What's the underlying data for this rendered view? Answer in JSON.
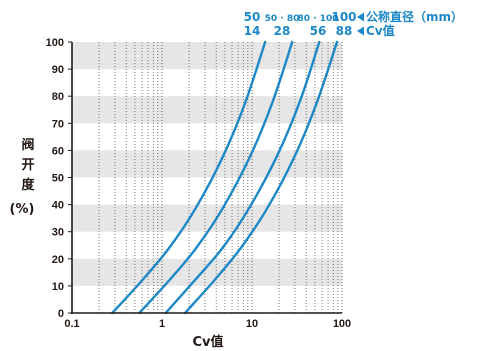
{
  "chart_data": {
    "type": "line",
    "title": "",
    "xlabel": "Cv值",
    "ylabel": [
      "阀",
      "开",
      "度",
      "(%)"
    ],
    "x_scale": "log",
    "xlim": [
      0.1,
      100
    ],
    "ylim": [
      0,
      100
    ],
    "x_ticks": [
      "0.1",
      "1",
      "10",
      "100"
    ],
    "y_ticks": [
      "0",
      "10",
      "20",
      "30",
      "40",
      "50",
      "60",
      "70",
      "80",
      "90",
      "100"
    ],
    "grid": true,
    "header": {
      "row1_label": "公称直径（mm）",
      "row2_label": "Cv值",
      "row1_values": [
        "50",
        "50 · 80",
        "80 · 100",
        "100"
      ],
      "row2_values": [
        "14",
        "28",
        "56",
        "88"
      ]
    },
    "series": [
      {
        "x": [
          0.28,
          0.6,
          1.2,
          2.4,
          4.8,
          8.5,
          14
        ],
        "y": [
          0,
          12,
          24,
          39,
          58,
          78,
          100
        ]
      },
      {
        "x": [
          0.56,
          1.2,
          2.4,
          4.8,
          9.6,
          17,
          28
        ],
        "y": [
          0,
          12,
          24,
          39,
          58,
          78,
          100
        ]
      },
      {
        "x": [
          1.1,
          2.3,
          4.7,
          9.4,
          19,
          34,
          56
        ],
        "y": [
          0,
          12,
          24,
          39,
          58,
          78,
          100
        ]
      },
      {
        "x": [
          1.8,
          3.8,
          7.5,
          15,
          30,
          53,
          88
        ],
        "y": [
          0,
          12,
          24,
          39,
          58,
          78,
          100
        ]
      }
    ],
    "colors": {
      "curve": "#1d88c7",
      "band": "#e6e6e6",
      "axis": "#231815",
      "label": "#1d88c7"
    }
  }
}
